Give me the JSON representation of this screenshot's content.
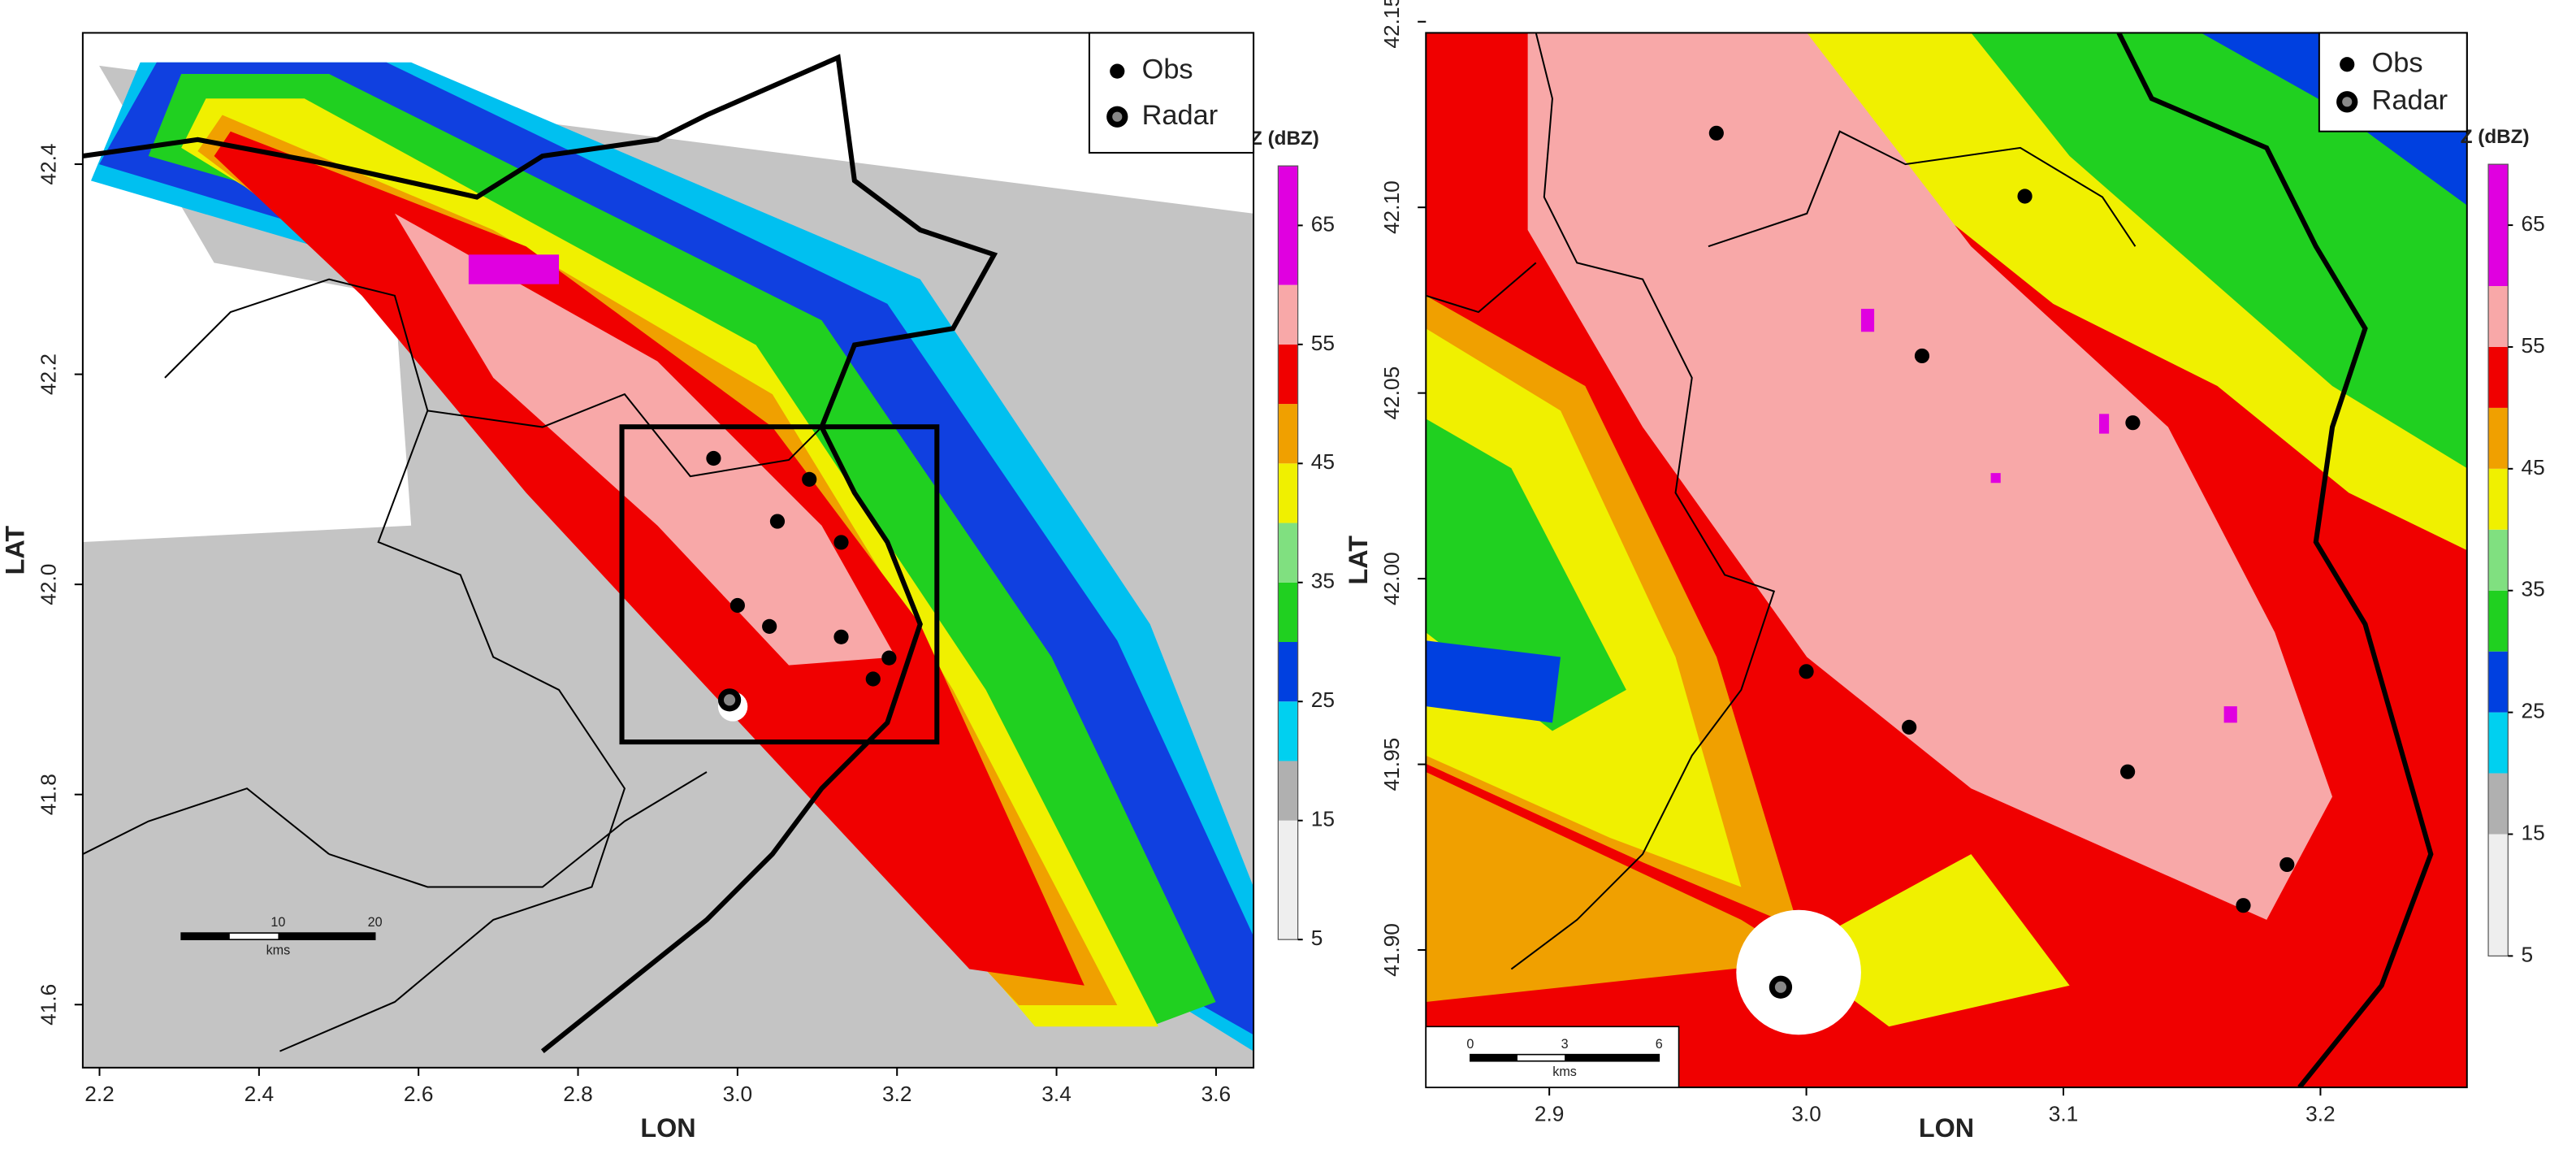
{
  "panels": [
    {
      "xlabel": "LON",
      "ylabel": "LAT",
      "xlim": [
        2.179,
        3.647
      ],
      "ylim": [
        41.54,
        42.525
      ],
      "xticks": [
        2.2,
        2.4,
        2.6,
        2.8,
        {
          "value": 3,
          "label": "3.0"
        },
        3.2,
        3.4,
        3.6
      ],
      "yticks": [
        41.6,
        41.8,
        {
          "value": 42,
          "label": "42.0"
        },
        42.2,
        42.4
      ],
      "colorbar": {
        "title": "Z (dBZ)",
        "lim": [
          5,
          70
        ],
        "ticks": [
          5,
          15,
          25,
          35,
          45,
          55,
          65
        ],
        "bounds": [
          5,
          15,
          20,
          25,
          30,
          35,
          40,
          45,
          50,
          55,
          60,
          70
        ],
        "colors": [
          "#eeeeee",
          "#b0b0b0",
          "#00d0f0",
          "#0040e0",
          "#20d020",
          "#80e080",
          "#f0f000",
          "#f0a000",
          "#f00000",
          "#f8a8a8",
          "#e000e0"
        ]
      },
      "legend": [
        "Obs",
        "Radar"
      ],
      "scalebar": {
        "ticks": [
          10,
          20
        ],
        "unit": "kms"
      },
      "obs": {
        "lon": [
          2.97,
          3.09,
          3.05,
          3.13,
          3.0,
          3.04,
          3.13,
          3.19,
          3.17
        ],
        "lat": [
          42.12,
          42.1,
          42.06,
          42.04,
          41.98,
          41.96,
          41.95,
          41.93,
          41.91
        ]
      },
      "radar": {
        "lon": 2.99,
        "lat": 41.89
      },
      "zoom_box": {
        "lon": [
          2.855,
          3.25
        ],
        "lat": [
          41.85,
          42.15
        ]
      }
    },
    {
      "xlabel": "LON",
      "ylabel": "LAT",
      "xlim": [
        2.852,
        3.257
      ],
      "ylim": [
        41.863,
        42.147
      ],
      "xticks": [
        2.9,
        {
          "value": 3,
          "label": "3.0"
        },
        3.1,
        3.2
      ],
      "yticks": [
        {
          "value": 41.9,
          "label": "41.90"
        },
        41.95,
        {
          "value": 42,
          "label": "42.00"
        },
        42.05,
        {
          "value": 42.1,
          "label": "42.10"
        },
        42.15
      ],
      "colorbar": {
        "title": "Z (dBZ)",
        "lim": [
          5,
          70
        ],
        "ticks": [
          5,
          15,
          25,
          35,
          45,
          55,
          65
        ],
        "bounds": [
          5,
          15,
          20,
          25,
          30,
          35,
          40,
          45,
          50,
          55,
          60,
          70
        ],
        "colors": [
          "#eeeeee",
          "#b0b0b0",
          "#00d0f0",
          "#0040e0",
          "#20d020",
          "#80e080",
          "#f0f000",
          "#f0a000",
          "#f00000",
          "#f8a8a8",
          "#e000e0"
        ]
      },
      "legend": [
        "Obs",
        "Radar"
      ],
      "scalebar": {
        "ticks": [
          0,
          3,
          6
        ],
        "unit": "kms"
      },
      "obs": {
        "lon": [
          2.965,
          3.085,
          3.045,
          3.127,
          3.0,
          3.04,
          3.125,
          3.187,
          3.17
        ],
        "lat": [
          42.12,
          42.103,
          42.06,
          42.042,
          41.975,
          41.96,
          41.948,
          41.923,
          41.912
        ]
      },
      "radar": {
        "lon": 2.99,
        "lat": 41.89
      }
    }
  ]
}
